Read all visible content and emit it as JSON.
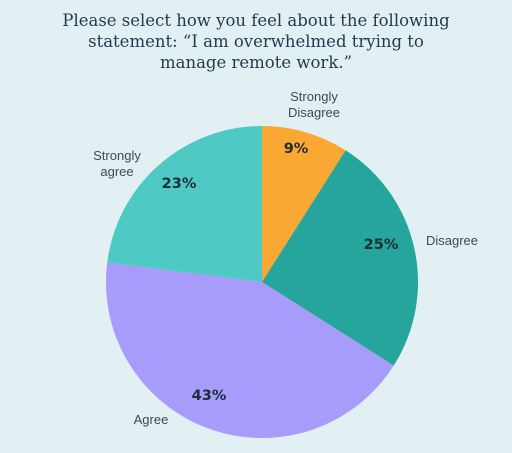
{
  "title_lines": [
    "Please select how you feel about the following",
    "statement: “I am overwhelmed trying to",
    "manage remote work.”"
  ],
  "chart_data": {
    "type": "pie",
    "title": "Please select how you feel about the following statement: “I am overwhelmed trying to manage remote work.”",
    "start_angle_deg": 0,
    "direction": "clockwise",
    "slices": [
      {
        "label_lines": [
          "Strongly",
          "Disagree"
        ],
        "value": 9,
        "display": "9%",
        "color": "#f9a833"
      },
      {
        "label_lines": [
          "Disagree"
        ],
        "value": 25,
        "display": "25%",
        "color": "#25a59b"
      },
      {
        "label_lines": [
          "Agree"
        ],
        "value": 43,
        "display": "43%",
        "color": "#a79bfb"
      },
      {
        "label_lines": [
          "Strongly",
          "agree"
        ],
        "value": 23,
        "display": "23%",
        "color": "#4fc9c3"
      }
    ],
    "legend": "none (labels outside slices)"
  }
}
